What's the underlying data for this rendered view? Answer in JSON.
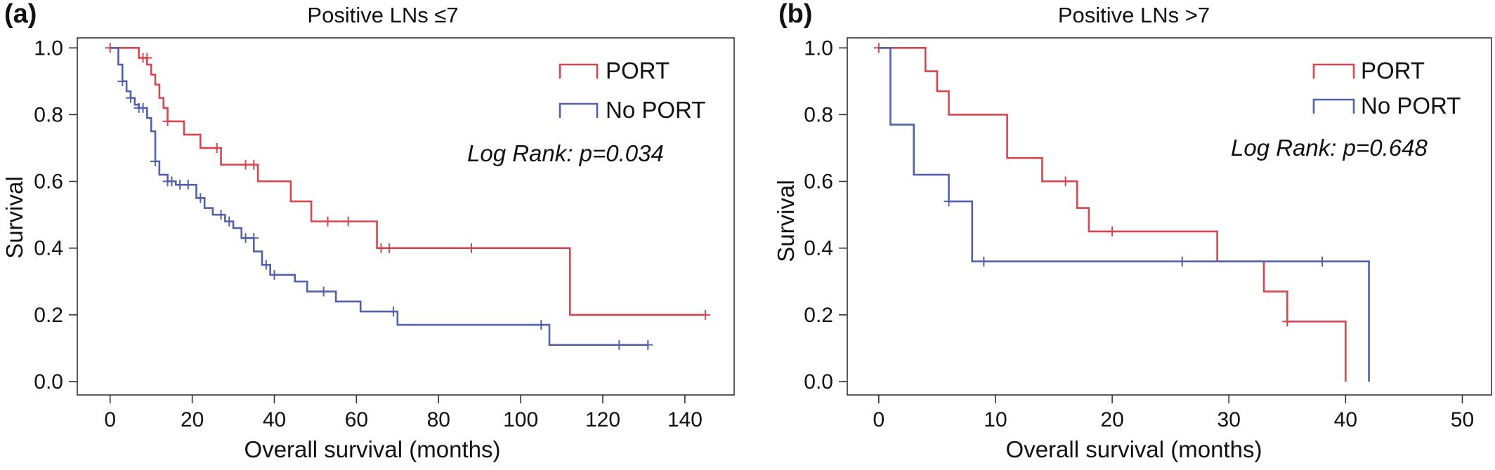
{
  "colors": {
    "port": "#d9454f",
    "no_port": "#5161aa",
    "axis": "#333333"
  },
  "chart_data": [
    {
      "type": "line",
      "subtype": "kaplan-meier",
      "panel_label": "(a)",
      "title": "Positive LNs ≤7",
      "xlabel": "Overall survival (months)",
      "ylabel": "Survival",
      "xlim": [
        -8,
        152
      ],
      "ylim": [
        -0.04,
        1.03
      ],
      "xticks": [
        0,
        20,
        40,
        60,
        80,
        100,
        120,
        140
      ],
      "xtick_labels": [
        "0",
        "20",
        "40",
        "60",
        "80",
        "100",
        "120",
        "140"
      ],
      "yticks": [
        0.0,
        0.2,
        0.4,
        0.6,
        0.8,
        1.0
      ],
      "ytick_labels": [
        "0.0",
        "0.2",
        "0.4",
        "0.6",
        "0.8",
        "1.0"
      ],
      "annotation": "Log Rank: p=0.034",
      "legend_position": "top-right",
      "series": [
        {
          "name": "PORT",
          "color": "#d9454f",
          "steps": [
            [
              0,
              1.0
            ],
            [
              7,
              0.97
            ],
            [
              9,
              0.95
            ],
            [
              10,
              0.92
            ],
            [
              11,
              0.89
            ],
            [
              12,
              0.85
            ],
            [
              13,
              0.82
            ],
            [
              14,
              0.78
            ],
            [
              18,
              0.74
            ],
            [
              22,
              0.7
            ],
            [
              27,
              0.65
            ],
            [
              36,
              0.6
            ],
            [
              44,
              0.54
            ],
            [
              49,
              0.48
            ],
            [
              65,
              0.4
            ],
            [
              112,
              0.2
            ],
            [
              145,
              0.2
            ]
          ],
          "censored": [
            [
              0,
              1.0
            ],
            [
              8,
              0.97
            ],
            [
              9,
              0.97
            ],
            [
              14,
              0.78
            ],
            [
              26,
              0.7
            ],
            [
              33,
              0.65
            ],
            [
              35,
              0.65
            ],
            [
              53,
              0.48
            ],
            [
              58,
              0.48
            ],
            [
              66,
              0.4
            ],
            [
              68,
              0.4
            ],
            [
              88,
              0.4
            ],
            [
              145,
              0.2
            ]
          ]
        },
        {
          "name": "No PORT",
          "color": "#5161aa",
          "steps": [
            [
              0,
              1.0
            ],
            [
              2,
              0.95
            ],
            [
              3,
              0.9
            ],
            [
              4,
              0.87
            ],
            [
              5,
              0.85
            ],
            [
              6,
              0.83
            ],
            [
              7,
              0.82
            ],
            [
              9,
              0.79
            ],
            [
              10,
              0.75
            ],
            [
              11,
              0.66
            ],
            [
              12,
              0.62
            ],
            [
              14,
              0.6
            ],
            [
              16,
              0.59
            ],
            [
              21,
              0.55
            ],
            [
              23,
              0.52
            ],
            [
              25,
              0.5
            ],
            [
              28,
              0.48
            ],
            [
              30,
              0.46
            ],
            [
              32,
              0.43
            ],
            [
              35,
              0.39
            ],
            [
              37,
              0.35
            ],
            [
              39,
              0.32
            ],
            [
              45,
              0.3
            ],
            [
              48,
              0.27
            ],
            [
              55,
              0.24
            ],
            [
              61,
              0.21
            ],
            [
              70,
              0.17
            ],
            [
              107,
              0.11
            ],
            [
              131,
              0.11
            ]
          ],
          "censored": [
            [
              3,
              0.9
            ],
            [
              5,
              0.85
            ],
            [
              7,
              0.82
            ],
            [
              8,
              0.82
            ],
            [
              11,
              0.66
            ],
            [
              14,
              0.6
            ],
            [
              15,
              0.6
            ],
            [
              17,
              0.59
            ],
            [
              19,
              0.59
            ],
            [
              22,
              0.55
            ],
            [
              27,
              0.5
            ],
            [
              29,
              0.48
            ],
            [
              33,
              0.43
            ],
            [
              35,
              0.43
            ],
            [
              38,
              0.35
            ],
            [
              40,
              0.32
            ],
            [
              52,
              0.27
            ],
            [
              69,
              0.21
            ],
            [
              105,
              0.17
            ],
            [
              124,
              0.11
            ],
            [
              131,
              0.11
            ]
          ]
        }
      ]
    },
    {
      "type": "line",
      "subtype": "kaplan-meier",
      "panel_label": "(b)",
      "title": "Positive LNs >7",
      "xlabel": "Overall survival (months)",
      "ylabel": "Survival",
      "xlim": [
        -2.7,
        52.5
      ],
      "ylim": [
        -0.04,
        1.03
      ],
      "xticks": [
        0,
        10,
        20,
        30,
        40,
        50
      ],
      "xtick_labels": [
        "0",
        "10",
        "20",
        "30",
        "40",
        "50"
      ],
      "yticks": [
        0.0,
        0.2,
        0.4,
        0.6,
        0.8,
        1.0
      ],
      "ytick_labels": [
        "0.0",
        "0.2",
        "0.4",
        "0.6",
        "0.8",
        "1.0"
      ],
      "annotation": "Log Rank: p=0.648",
      "legend_position": "top-right",
      "series": [
        {
          "name": "PORT",
          "color": "#d9454f",
          "steps": [
            [
              0,
              1.0
            ],
            [
              4,
              0.93
            ],
            [
              5,
              0.87
            ],
            [
              6,
              0.8
            ],
            [
              11,
              0.67
            ],
            [
              14,
              0.6
            ],
            [
              17,
              0.52
            ],
            [
              18,
              0.45
            ],
            [
              29,
              0.36
            ],
            [
              33,
              0.27
            ],
            [
              35,
              0.18
            ],
            [
              40,
              0.0
            ]
          ],
          "censored": [
            [
              0,
              1.0
            ],
            [
              16,
              0.6
            ],
            [
              20,
              0.45
            ],
            [
              35,
              0.18
            ]
          ]
        },
        {
          "name": "No PORT",
          "color": "#5161aa",
          "steps": [
            [
              0,
              1.0
            ],
            [
              1,
              0.77
            ],
            [
              3,
              0.62
            ],
            [
              6,
              0.54
            ],
            [
              8,
              0.36
            ],
            [
              42,
              0.0
            ]
          ],
          "censored": [
            [
              6,
              0.54
            ],
            [
              9,
              0.36
            ],
            [
              26,
              0.36
            ],
            [
              38,
              0.36
            ]
          ]
        }
      ]
    }
  ]
}
